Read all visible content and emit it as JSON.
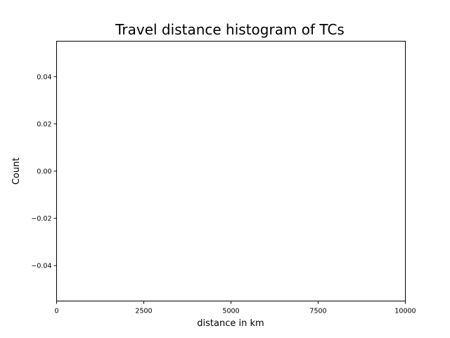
{
  "chart_data": {
    "type": "bar",
    "title": "Travel distance histogram of TCs",
    "xlabel": "distance in km",
    "ylabel": "Count",
    "xlim": [
      0,
      10000
    ],
    "ylim": [
      -0.055,
      0.055
    ],
    "x_ticks": [
      0,
      2500,
      5000,
      7500,
      10000
    ],
    "x_tick_labels": [
      "0",
      "2500",
      "5000",
      "7500",
      "10000"
    ],
    "y_ticks": [
      -0.04,
      -0.02,
      0.0,
      0.02,
      0.04
    ],
    "y_tick_labels": [
      "−0.04",
      "−0.02",
      "0.00",
      "0.02",
      "0.04"
    ],
    "bins": [],
    "counts": [],
    "grid": false,
    "legend": "none"
  }
}
